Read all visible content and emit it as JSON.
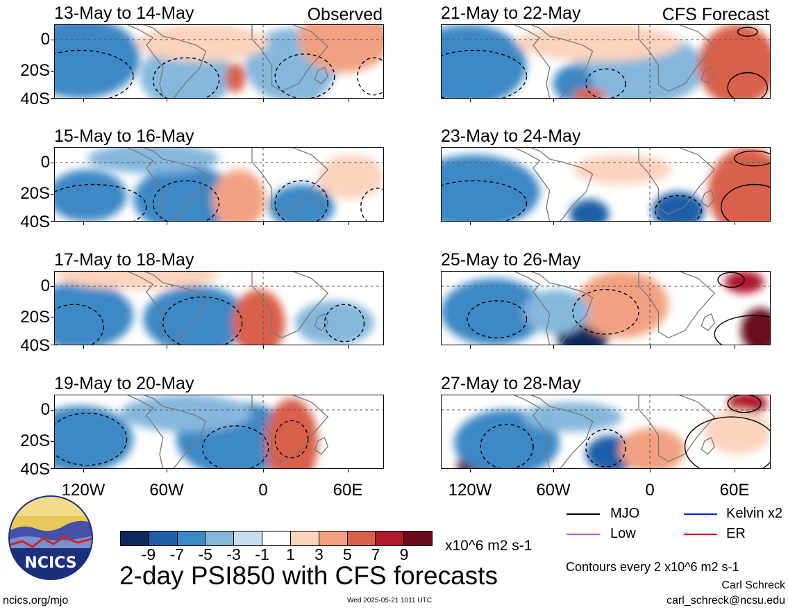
{
  "panels": [
    {
      "title": "13-May to 14-May",
      "tag": "Observed"
    },
    {
      "title": "21-May to 22-May",
      "tag": "CFS Forecast"
    },
    {
      "title": "15-May to 16-May",
      "tag": ""
    },
    {
      "title": "23-May to 24-May",
      "tag": ""
    },
    {
      "title": "17-May to 18-May",
      "tag": ""
    },
    {
      "title": "25-May to 26-May",
      "tag": ""
    },
    {
      "title": "19-May to 20-May",
      "tag": ""
    },
    {
      "title": "27-May to 28-May",
      "tag": ""
    }
  ],
  "axes": {
    "lat_labels": [
      "0",
      "20S",
      "40S"
    ],
    "lon_labels": [
      "120W",
      "60W",
      "0",
      "60E"
    ]
  },
  "colorbar": {
    "labels": [
      "-9",
      "-7",
      "-5",
      "-3",
      "-1",
      "1",
      "3",
      "5",
      "7",
      "9"
    ],
    "colors": [
      "#0c2a5c",
      "#1f5fa8",
      "#3d88c5",
      "#85b7dc",
      "#c8def0",
      "#ffffff",
      "#fcd3bd",
      "#f1a181",
      "#d9614c",
      "#b0182b",
      "#6b0a1e"
    ],
    "units": "x10^6 m2 s-1"
  },
  "legend": {
    "mjo": "MJO",
    "mjo_color": "#000000",
    "kelvin": "Kelvin x2",
    "kelvin_color": "#1020d0",
    "low": "Low",
    "low_color": "#b06bd8",
    "er": "ER",
    "er_color": "#d81818",
    "contours": "Contours every 2 x10^6 m2 s-1"
  },
  "title": "2-day PSI850 with CFS forecasts",
  "footer": {
    "site": "ncics.org/mjo",
    "timestamp": "Wed 2025-05-21 1011 UTC",
    "author": "Carl Schreck",
    "email": "carl_schreck@ncsu.edu"
  },
  "logo": {
    "text": "NCICS"
  }
}
